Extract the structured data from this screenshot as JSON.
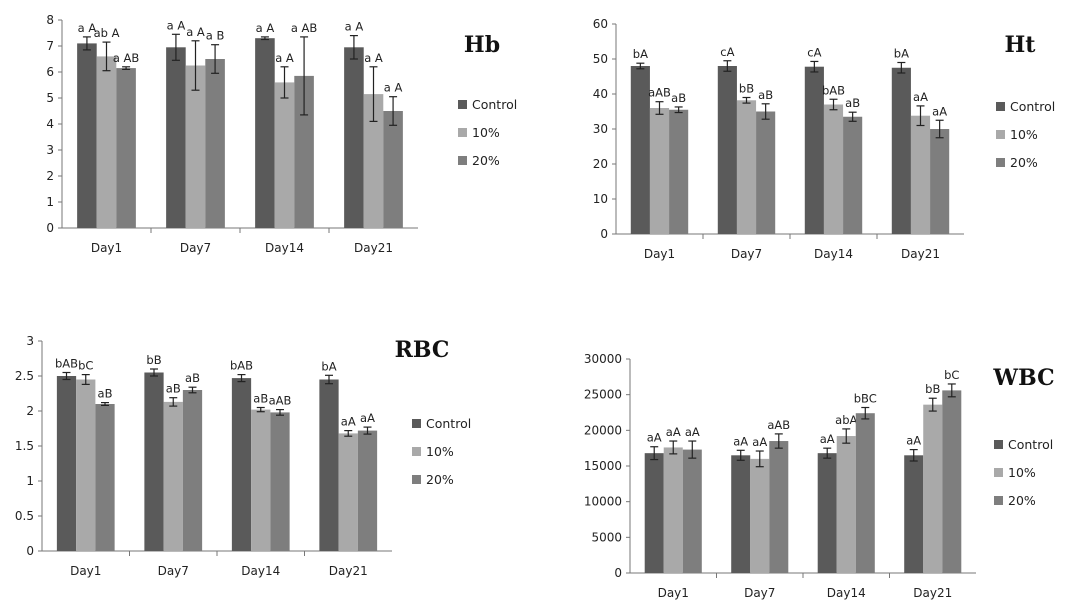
{
  "colors": {
    "Control": "#5a5a5a",
    "10%": "#a9a9a9",
    "20%": "#7e7e7e"
  },
  "chart_data": [
    {
      "id": "hb",
      "type": "bar",
      "title": "Hb",
      "categories": [
        "Day1",
        "Day7",
        "Day14",
        "Day21"
      ],
      "series": [
        {
          "name": "Control",
          "values": [
            7.1,
            6.95,
            7.3,
            6.95
          ],
          "errors": [
            0.25,
            0.5,
            0.05,
            0.45
          ],
          "labels": [
            "a A",
            "a A",
            "a A",
            "a A"
          ]
        },
        {
          "name": "10%",
          "values": [
            6.6,
            6.25,
            5.6,
            5.15
          ],
          "errors": [
            0.55,
            0.95,
            0.6,
            1.05
          ],
          "labels": [
            "ab A",
            "a A",
            "a A",
            "a A"
          ]
        },
        {
          "name": "20%",
          "values": [
            6.15,
            6.5,
            5.85,
            4.5
          ],
          "errors": [
            0.05,
            0.55,
            1.5,
            0.55
          ],
          "labels": [
            "a AB",
            "a B",
            "a AB",
            "a A"
          ]
        }
      ],
      "yticks": [
        0,
        1,
        2,
        3,
        4,
        5,
        6,
        7,
        8
      ],
      "ylim": [
        0,
        8
      ],
      "legend": "right"
    },
    {
      "id": "ht",
      "type": "bar",
      "title": "Ht",
      "categories": [
        "Day1",
        "Day7",
        "Day14",
        "Day21"
      ],
      "series": [
        {
          "name": "Control",
          "values": [
            48,
            48,
            47.8,
            47.5
          ],
          "errors": [
            0.8,
            1.5,
            1.5,
            1.5
          ],
          "labels": [
            "bA",
            "cA",
            "cA",
            "bA"
          ]
        },
        {
          "name": "10%",
          "values": [
            36,
            38.2,
            37,
            33.8
          ],
          "errors": [
            1.8,
            0.8,
            1.5,
            2.8
          ],
          "labels": [
            "aAB",
            "bB",
            "bAB",
            "aA"
          ]
        },
        {
          "name": "20%",
          "values": [
            35.5,
            35,
            33.5,
            30
          ],
          "errors": [
            0.8,
            2.2,
            1.3,
            2.5
          ],
          "labels": [
            "aB",
            "aB",
            "aB",
            "aA"
          ]
        }
      ],
      "yticks": [
        0,
        10,
        20,
        30,
        40,
        50,
        60
      ],
      "ylim": [
        0,
        60
      ],
      "legend": "right"
    },
    {
      "id": "rbc",
      "type": "bar",
      "title": "RBC",
      "categories": [
        "Day1",
        "Day7",
        "Day14",
        "Day21"
      ],
      "series": [
        {
          "name": "Control",
          "values": [
            2.5,
            2.55,
            2.47,
            2.45
          ],
          "errors": [
            0.05,
            0.05,
            0.05,
            0.06
          ],
          "labels": [
            "bAB",
            "bB",
            "bAB",
            "bA"
          ]
        },
        {
          "name": "10%",
          "values": [
            2.45,
            2.13,
            2.02,
            1.68
          ],
          "errors": [
            0.07,
            0.06,
            0.03,
            0.04
          ],
          "labels": [
            "bC",
            "aB",
            "aB",
            "aA"
          ]
        },
        {
          "name": "20%",
          "values": [
            2.1,
            2.3,
            1.98,
            1.72
          ],
          "errors": [
            0.02,
            0.04,
            0.04,
            0.05
          ],
          "labels": [
            "aB",
            "aB",
            "aAB",
            "aA"
          ]
        }
      ],
      "yticks": [
        "0",
        "0.5",
        "1",
        "1.5",
        "2",
        "2.5",
        "3"
      ],
      "ylim": [
        0,
        3
      ],
      "legend": "right"
    },
    {
      "id": "wbc",
      "type": "bar",
      "title": "WBC",
      "categories": [
        "Day1",
        "Day7",
        "Day14",
        "Day21"
      ],
      "series": [
        {
          "name": "Control",
          "values": [
            16800,
            16500,
            16800,
            16500
          ],
          "errors": [
            900,
            700,
            700,
            800
          ],
          "labels": [
            "aA",
            "aA",
            "aA",
            "aA"
          ]
        },
        {
          "name": "10%",
          "values": [
            17600,
            16000,
            19200,
            23600
          ],
          "errors": [
            900,
            1100,
            1000,
            900
          ],
          "labels": [
            "aA",
            "aA",
            "abA",
            "bB"
          ]
        },
        {
          "name": "20%",
          "values": [
            17300,
            18500,
            22400,
            25600
          ],
          "errors": [
            1200,
            1000,
            800,
            900
          ],
          "labels": [
            "aA",
            "aAB",
            "bBC",
            "bC"
          ]
        }
      ],
      "yticks": [
        0,
        5000,
        10000,
        15000,
        20000,
        25000,
        30000
      ],
      "ylim": [
        0,
        30000
      ],
      "legend": "right"
    }
  ]
}
